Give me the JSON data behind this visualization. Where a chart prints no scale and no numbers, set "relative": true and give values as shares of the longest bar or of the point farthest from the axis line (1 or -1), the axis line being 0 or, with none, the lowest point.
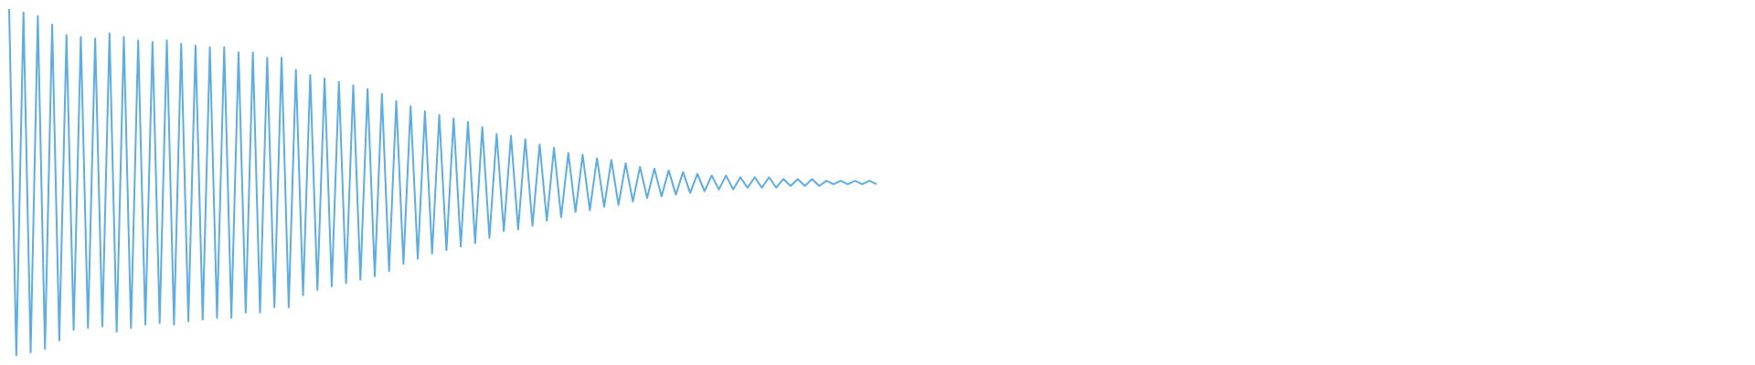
{
  "chart_data": {
    "type": "line",
    "relative": true,
    "categories": [
      null,
      null,
      null,
      null,
      null,
      null,
      null,
      null,
      null,
      null,
      null,
      null,
      null,
      null,
      null,
      null,
      null,
      null,
      null,
      null,
      null,
      null,
      null,
      null,
      null,
      null,
      null,
      null,
      null,
      null,
      null,
      null,
      null,
      null,
      null,
      null,
      null,
      null,
      null,
      null,
      null,
      null,
      null,
      null,
      null,
      null,
      null,
      null,
      null,
      null,
      null,
      null,
      null,
      null,
      null,
      null,
      null,
      null,
      null,
      null,
      null,
      null,
      null,
      null,
      null,
      null,
      null,
      null,
      null,
      null,
      null,
      null,
      null,
      null,
      null,
      null,
      null,
      null,
      null,
      null,
      null,
      null,
      null,
      null,
      null,
      null,
      null,
      null,
      null,
      null,
      null,
      null,
      null,
      null,
      null,
      null,
      null,
      null,
      null,
      null,
      null,
      null,
      null,
      null,
      null,
      null,
      null,
      null,
      null,
      null,
      null,
      null,
      null,
      null,
      null,
      null,
      null,
      null,
      null,
      null,
      null,
      null
    ],
    "series": [
      {
        "color": "#5dade2",
        "values": [
          1,
          0,
          0.99,
          0.01,
          0.98,
          0.02,
          0.955,
          0.045,
          0.925,
          0.075,
          0.92,
          0.08,
          0.915,
          0.085,
          0.93,
          0.07,
          0.92,
          0.08,
          0.91,
          0.09,
          0.905,
          0.095,
          0.91,
          0.09,
          0.9,
          0.1,
          0.895,
          0.105,
          0.89,
          0.11,
          0.89,
          0.11,
          0.875,
          0.125,
          0.875,
          0.125,
          0.86,
          0.14,
          0.86,
          0.14,
          0.825,
          0.175,
          0.81,
          0.19,
          0.8,
          0.2,
          0.79,
          0.21,
          0.78,
          0.22,
          0.77,
          0.23,
          0.755,
          0.245,
          0.735,
          0.265,
          0.72,
          0.28,
          0.705,
          0.295,
          0.695,
          0.305,
          0.685,
          0.315,
          0.675,
          0.325,
          0.66,
          0.34,
          0.64,
          0.36,
          0.635,
          0.365,
          0.625,
          0.375,
          0.61,
          0.39,
          0.6,
          0.4,
          0.585,
          0.415,
          0.58,
          0.42,
          0.57,
          0.43,
          0.565,
          0.435,
          0.555,
          0.445,
          0.545,
          0.455,
          0.54,
          0.46,
          0.535,
          0.465,
          0.53,
          0.47,
          0.525,
          0.475,
          0.52,
          0.48,
          0.52,
          0.48,
          0.515,
          0.485,
          0.515,
          0.485,
          0.515,
          0.485,
          0.51,
          0.49,
          0.51,
          0.49,
          0.51,
          0.49,
          0.505,
          0.495,
          0.505,
          0.495,
          0.505,
          0.495,
          0.505,
          0.495
        ]
      }
    ]
  }
}
